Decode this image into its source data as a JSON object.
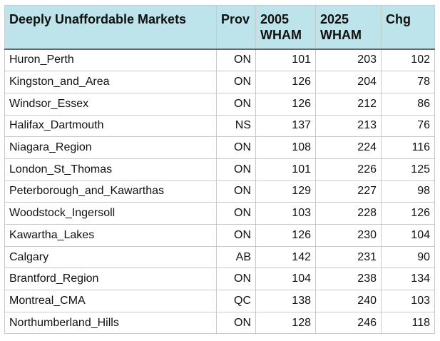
{
  "table": {
    "header": [
      "Deeply Unaffordable Markets",
      "Prov",
      "2005 WHAM",
      "2025 WHAM",
      "Chg"
    ],
    "rows": [
      [
        "Huron_Perth",
        "ON",
        101,
        203,
        102
      ],
      [
        "Kingston_and_Area",
        "ON",
        126,
        204,
        78
      ],
      [
        "Windsor_Essex",
        "ON",
        126,
        212,
        86
      ],
      [
        "Halifax_Dartmouth",
        "NS",
        137,
        213,
        76
      ],
      [
        "Niagara_Region",
        "ON",
        108,
        224,
        116
      ],
      [
        "London_St_Thomas",
        "ON",
        101,
        226,
        125
      ],
      [
        "Peterborough_and_Kawarthas",
        "ON",
        129,
        227,
        98
      ],
      [
        "Woodstock_Ingersoll",
        "ON",
        103,
        228,
        126
      ],
      [
        "Kawartha_Lakes",
        "ON",
        126,
        230,
        104
      ],
      [
        "Calgary",
        "AB",
        142,
        231,
        90
      ],
      [
        "Brantford_Region",
        "ON",
        104,
        238,
        134
      ],
      [
        "Montreal_CMA",
        "QC",
        138,
        240,
        103
      ],
      [
        "Northumberland_Hills",
        "ON",
        128,
        246,
        118
      ]
    ]
  }
}
